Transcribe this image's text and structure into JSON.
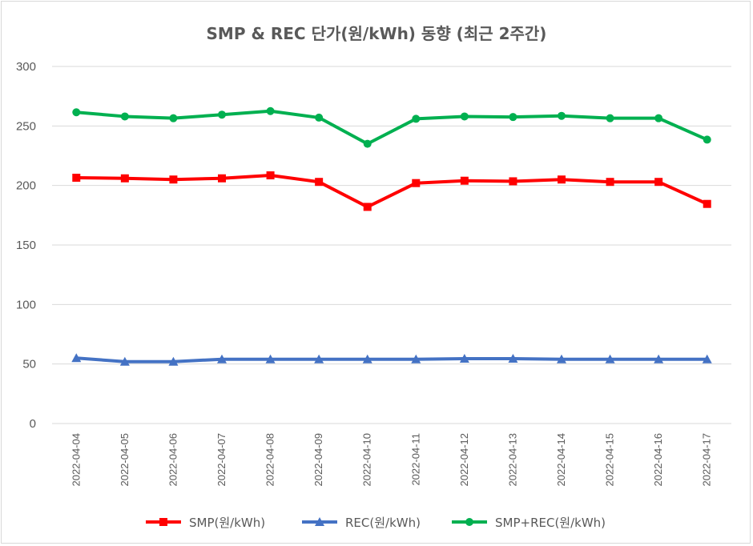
{
  "chart_data": {
    "type": "line",
    "title": "SMP & REC 단가(원/kWh) 동향 (최근 2주간)",
    "xlabel": "",
    "ylabel": "",
    "ylim": [
      0,
      300
    ],
    "yticks": [
      0,
      50,
      100,
      150,
      200,
      250,
      300
    ],
    "grid": true,
    "legend_position": "bottom",
    "categories": [
      "2022-04-04",
      "2022-04-05",
      "2022-04-06",
      "2022-04-07",
      "2022-04-08",
      "2022-04-09",
      "2022-04-10",
      "2022-04-11",
      "2022-04-12",
      "2022-04-13",
      "2022-04-14",
      "2022-04-15",
      "2022-04-16",
      "2022-04-17"
    ],
    "series": [
      {
        "name": "SMP(원/kWh)",
        "color": "#ff0000",
        "marker": "square",
        "values": [
          206.5,
          206,
          205,
          206,
          208.5,
          203,
          182,
          202,
          204,
          203.5,
          205,
          203,
          203,
          184.5
        ]
      },
      {
        "name": "REC(원/kWh)",
        "color": "#4472c4",
        "marker": "triangle",
        "values": [
          55,
          52,
          52,
          54,
          54,
          54,
          54,
          54,
          54.5,
          54.5,
          54,
          54,
          54,
          54
        ]
      },
      {
        "name": "SMP+REC(원/kWh)",
        "color": "#00b050",
        "marker": "circle",
        "values": [
          261.5,
          258,
          256.5,
          259.5,
          262.5,
          257,
          235,
          256,
          258,
          257.5,
          258.5,
          256.5,
          256.5,
          238.5
        ]
      }
    ]
  }
}
